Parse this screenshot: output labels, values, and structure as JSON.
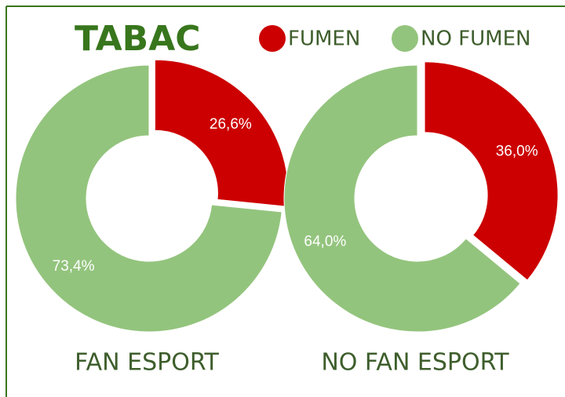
{
  "title": "TABAC",
  "chart_data": [
    {
      "type": "pie",
      "title": "FAN ESPORT",
      "categories": [
        "FUMEN",
        "NO FUMEN"
      ],
      "colors": [
        "#cc0000",
        "#93c47d"
      ],
      "values": [
        26.6,
        73.4
      ],
      "value_labels": [
        "26,6%",
        "73,4%"
      ]
    },
    {
      "type": "pie",
      "title": "NO FAN ESPORT",
      "categories": [
        "FUMEN",
        "NO FUMEN"
      ],
      "colors": [
        "#cc0000",
        "#93c47d"
      ],
      "values": [
        36.0,
        64.0
      ],
      "value_labels": [
        "36,0%",
        "64,0%"
      ]
    }
  ]
}
